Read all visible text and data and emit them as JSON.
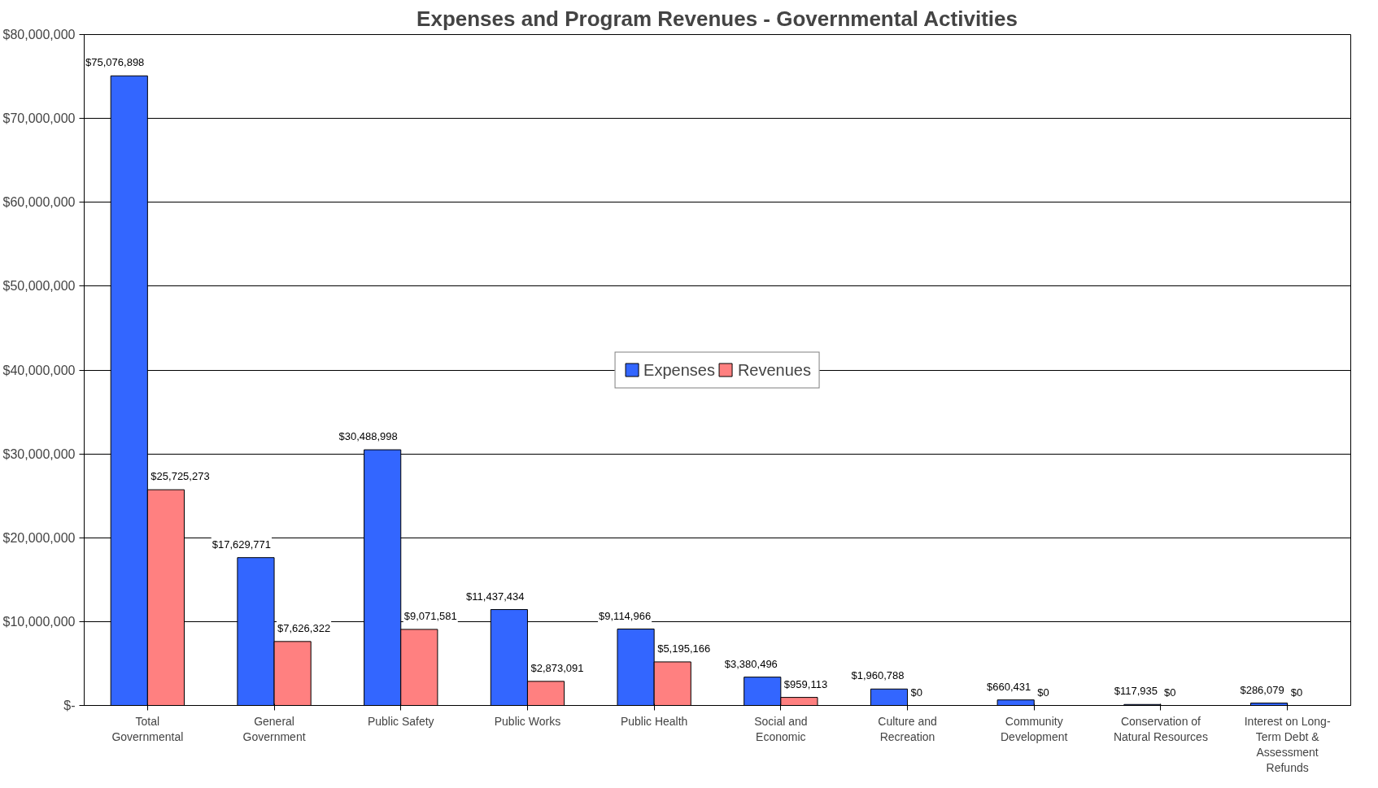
{
  "chart_data": {
    "type": "bar",
    "title": "Expenses and Program Revenues - Governmental Activities",
    "categories": [
      "Total Governmental",
      "General Government",
      "Public Safety",
      "Public Works",
      "Public Health",
      "Social and Economic",
      "Culture and Recreation",
      "Community Development",
      "Conservation of Natural Resources",
      "Interest on Long-Term Debt & Assessment Refunds"
    ],
    "series": [
      {
        "name": "Expenses",
        "color": "#3366ff",
        "values": [
          75076898,
          17629771,
          30488998,
          11437434,
          9114966,
          3380496,
          1960788,
          660431,
          117935,
          286079
        ],
        "value_labels": [
          "$75,076,898",
          "$17,629,771",
          "$30,488,998",
          "$11,437,434",
          "$9,114,966",
          "$3,380,496",
          "$1,960,788",
          "$660,431",
          "$117,935",
          "$286,079"
        ]
      },
      {
        "name": "Revenues",
        "color": "#ff8080",
        "values": [
          25725273,
          7626322,
          9071581,
          2873091,
          5195166,
          959113,
          0,
          0,
          0,
          0
        ],
        "value_labels": [
          "$25,725,273",
          "$7,626,322",
          "$9,071,581",
          "$2,873,091",
          "$5,195,166",
          "$959,113",
          "$0",
          "$0",
          "$0",
          "$0"
        ]
      }
    ],
    "ylim": [
      0,
      80000000
    ],
    "yticks": [
      {
        "value": 0,
        "label": "$-"
      },
      {
        "value": 10000000,
        "label": "$10,000,000"
      },
      {
        "value": 20000000,
        "label": "$20,000,000"
      },
      {
        "value": 30000000,
        "label": "$30,000,000"
      },
      {
        "value": 40000000,
        "label": "$40,000,000"
      },
      {
        "value": 50000000,
        "label": "$50,000,000"
      },
      {
        "value": 60000000,
        "label": "$60,000,000"
      },
      {
        "value": 70000000,
        "label": "$70,000,000"
      },
      {
        "value": 80000000,
        "label": "$80,000,000"
      }
    ],
    "grid": "y",
    "legend": "center"
  }
}
